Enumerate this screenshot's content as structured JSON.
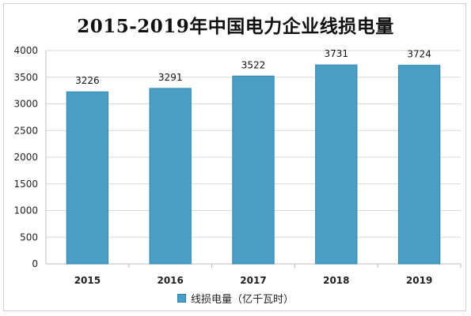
{
  "chart_data": {
    "type": "bar",
    "title": "2015-2019年中国电力企业线损电量",
    "categories": [
      "2015",
      "2016",
      "2017",
      "2018",
      "2019"
    ],
    "series": [
      {
        "name": "线损电量（亿千瓦时）",
        "values": [
          3226,
          3291,
          3522,
          3731,
          3724
        ]
      }
    ],
    "ylim": [
      0,
      4000
    ],
    "yticks": [
      0,
      500,
      1000,
      1500,
      2000,
      2500,
      3000,
      3500,
      4000
    ],
    "grid": true,
    "legend_position": "bottom",
    "bar_color": "#4a9ec5"
  }
}
